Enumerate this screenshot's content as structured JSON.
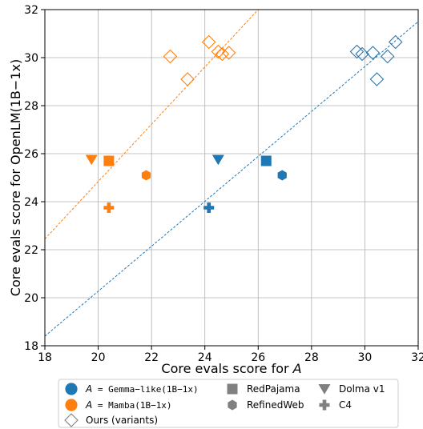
{
  "chart_data": {
    "type": "scatter",
    "xlabel": "Core evals score for A",
    "ylabel": "Core evals score for OpenLM(1B−1x)",
    "xlim": [
      18,
      32
    ],
    "ylim": [
      18,
      32
    ],
    "x_ticks": [
      18,
      20,
      22,
      24,
      26,
      28,
      30,
      32
    ],
    "y_ticks": [
      18,
      20,
      22,
      24,
      26,
      28,
      30,
      32
    ],
    "grid": true,
    "colors": {
      "gemma": "#1f77b4",
      "mamba": "#ff7f0e",
      "neutral": "#808080"
    },
    "series": [
      {
        "name": "A = Gemma−like(1B−1x)",
        "color": "#1f77b4",
        "points": [
          {
            "dataset": "RedPajama",
            "marker": "square",
            "x": 26.3,
            "y": 25.7
          },
          {
            "dataset": "RefinedWeb",
            "marker": "hexagon",
            "x": 26.9,
            "y": 25.1
          },
          {
            "dataset": "Dolma v1",
            "marker": "triangle-down",
            "x": 24.5,
            "y": 25.75
          },
          {
            "dataset": "C4",
            "marker": "plus",
            "x": 24.15,
            "y": 23.75
          }
        ],
        "variants": [
          {
            "x": 29.7,
            "y": 30.25
          },
          {
            "x": 29.9,
            "y": 30.15
          },
          {
            "x": 30.3,
            "y": 30.2
          },
          {
            "x": 30.85,
            "y": 30.05
          },
          {
            "x": 31.15,
            "y": 30.65
          },
          {
            "x": 30.45,
            "y": 29.1
          }
        ],
        "fit_line": {
          "x": [
            18,
            32
          ],
          "y": [
            18.4,
            31.5
          ]
        }
      },
      {
        "name": "A = Mamba(1B−1x)",
        "color": "#ff7f0e",
        "points": [
          {
            "dataset": "RedPajama",
            "marker": "square",
            "x": 20.4,
            "y": 25.7
          },
          {
            "dataset": "RefinedWeb",
            "marker": "hexagon",
            "x": 21.8,
            "y": 25.1
          },
          {
            "dataset": "Dolma v1",
            "marker": "triangle-down",
            "x": 19.75,
            "y": 25.75
          },
          {
            "dataset": "C4",
            "marker": "plus",
            "x": 20.4,
            "y": 23.75
          }
        ],
        "variants": [
          {
            "x": 22.7,
            "y": 30.05
          },
          {
            "x": 23.35,
            "y": 29.1
          },
          {
            "x": 24.15,
            "y": 30.65
          },
          {
            "x": 24.5,
            "y": 30.25
          },
          {
            "x": 24.65,
            "y": 30.15
          },
          {
            "x": 24.9,
            "y": 30.2
          }
        ],
        "fit_line": {
          "x": [
            18,
            26.0
          ],
          "y": [
            22.45,
            32
          ]
        }
      }
    ],
    "legend": {
      "placement": "bottom",
      "entries": [
        {
          "label": "A = Gemma−like(1B−1x)",
          "kind": "model",
          "color": "#1f77b4"
        },
        {
          "label": "RedPajama",
          "kind": "dataset",
          "marker": "square"
        },
        {
          "label": "Dolma v1",
          "kind": "dataset",
          "marker": "triangle-down"
        },
        {
          "label": "A = Mamba(1B−1x)",
          "kind": "model",
          "color": "#ff7f0e"
        },
        {
          "label": "RefinedWeb",
          "kind": "dataset",
          "marker": "hexagon"
        },
        {
          "label": "C4",
          "kind": "dataset",
          "marker": "plus"
        },
        {
          "label": "Ours (variants)",
          "kind": "variant",
          "marker": "diamond-open"
        }
      ]
    }
  }
}
